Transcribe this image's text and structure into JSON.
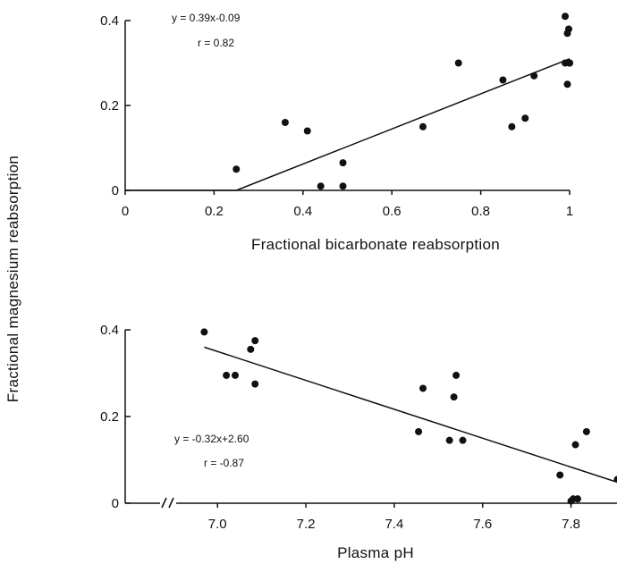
{
  "shared_ylabel": "Fractional magnesium reabsorption",
  "chart_data": [
    {
      "type": "scatter",
      "xlabel": "Fractional bicarbonate reabsorption",
      "ylabel": "Fractional magnesium reabsorption",
      "xlim": [
        0,
        1
      ],
      "ylim": [
        0,
        0.4
      ],
      "x_ticks": [
        "0",
        "0.2",
        "0.4",
        "0.6",
        "0.8",
        "1"
      ],
      "x_tick_values": [
        0,
        0.2,
        0.4,
        0.6,
        0.8,
        1
      ],
      "y_ticks": [
        "0",
        "0.2",
        "0.4"
      ],
      "y_tick_values": [
        0,
        0.2,
        0.4
      ],
      "equation": "y = 0.39x-0.09",
      "r_label": "r = 0.82",
      "fit": {
        "x": [
          0.25,
          1.0
        ],
        "y": [
          0.0,
          0.31
        ]
      },
      "baseline": {
        "x": [
          0.0,
          0.25
        ],
        "y": [
          0.0,
          0.0
        ]
      },
      "points": {
        "x": [
          0.25,
          0.36,
          0.41,
          0.44,
          0.49,
          0.49,
          0.67,
          0.75,
          0.85,
          0.87,
          0.9,
          0.92,
          0.99,
          0.99,
          0.995,
          0.998,
          1.0,
          1.0,
          0.995
        ],
        "y": [
          0.05,
          0.16,
          0.14,
          0.01,
          0.065,
          0.01,
          0.15,
          0.3,
          0.26,
          0.15,
          0.17,
          0.27,
          0.3,
          0.41,
          0.37,
          0.38,
          0.3,
          0.3,
          0.25
        ]
      }
    },
    {
      "type": "scatter",
      "xlabel": "Plasma pH",
      "ylabel": "Fractional magnesium reabsorption",
      "xlim": [
        6.8,
        7.9
      ],
      "ylim": [
        0,
        0.4
      ],
      "axis_break": "//",
      "x_ticks": [
        "7.0",
        "7.2",
        "7.4",
        "7.6",
        "7.8"
      ],
      "x_tick_values": [
        7.0,
        7.2,
        7.4,
        7.6,
        7.8
      ],
      "y_ticks": [
        "0",
        "0.2",
        "0.4"
      ],
      "y_tick_values": [
        0,
        0.2,
        0.4
      ],
      "equation": "y = -0.32x+2.60",
      "r_label": "r = -0.87",
      "fit": {
        "x": [
          6.97,
          7.9
        ],
        "y": [
          0.36,
          0.05
        ]
      },
      "points": {
        "x": [
          6.97,
          7.02,
          7.04,
          7.075,
          7.085,
          7.085,
          7.455,
          7.465,
          7.525,
          7.535,
          7.54,
          7.555,
          7.775,
          7.8,
          7.805,
          7.81,
          7.815,
          7.835,
          7.905
        ],
        "y": [
          0.395,
          0.295,
          0.295,
          0.355,
          0.375,
          0.275,
          0.165,
          0.265,
          0.145,
          0.245,
          0.295,
          0.145,
          0.065,
          0.005,
          0.01,
          0.135,
          0.01,
          0.165,
          0.055
        ]
      }
    }
  ]
}
